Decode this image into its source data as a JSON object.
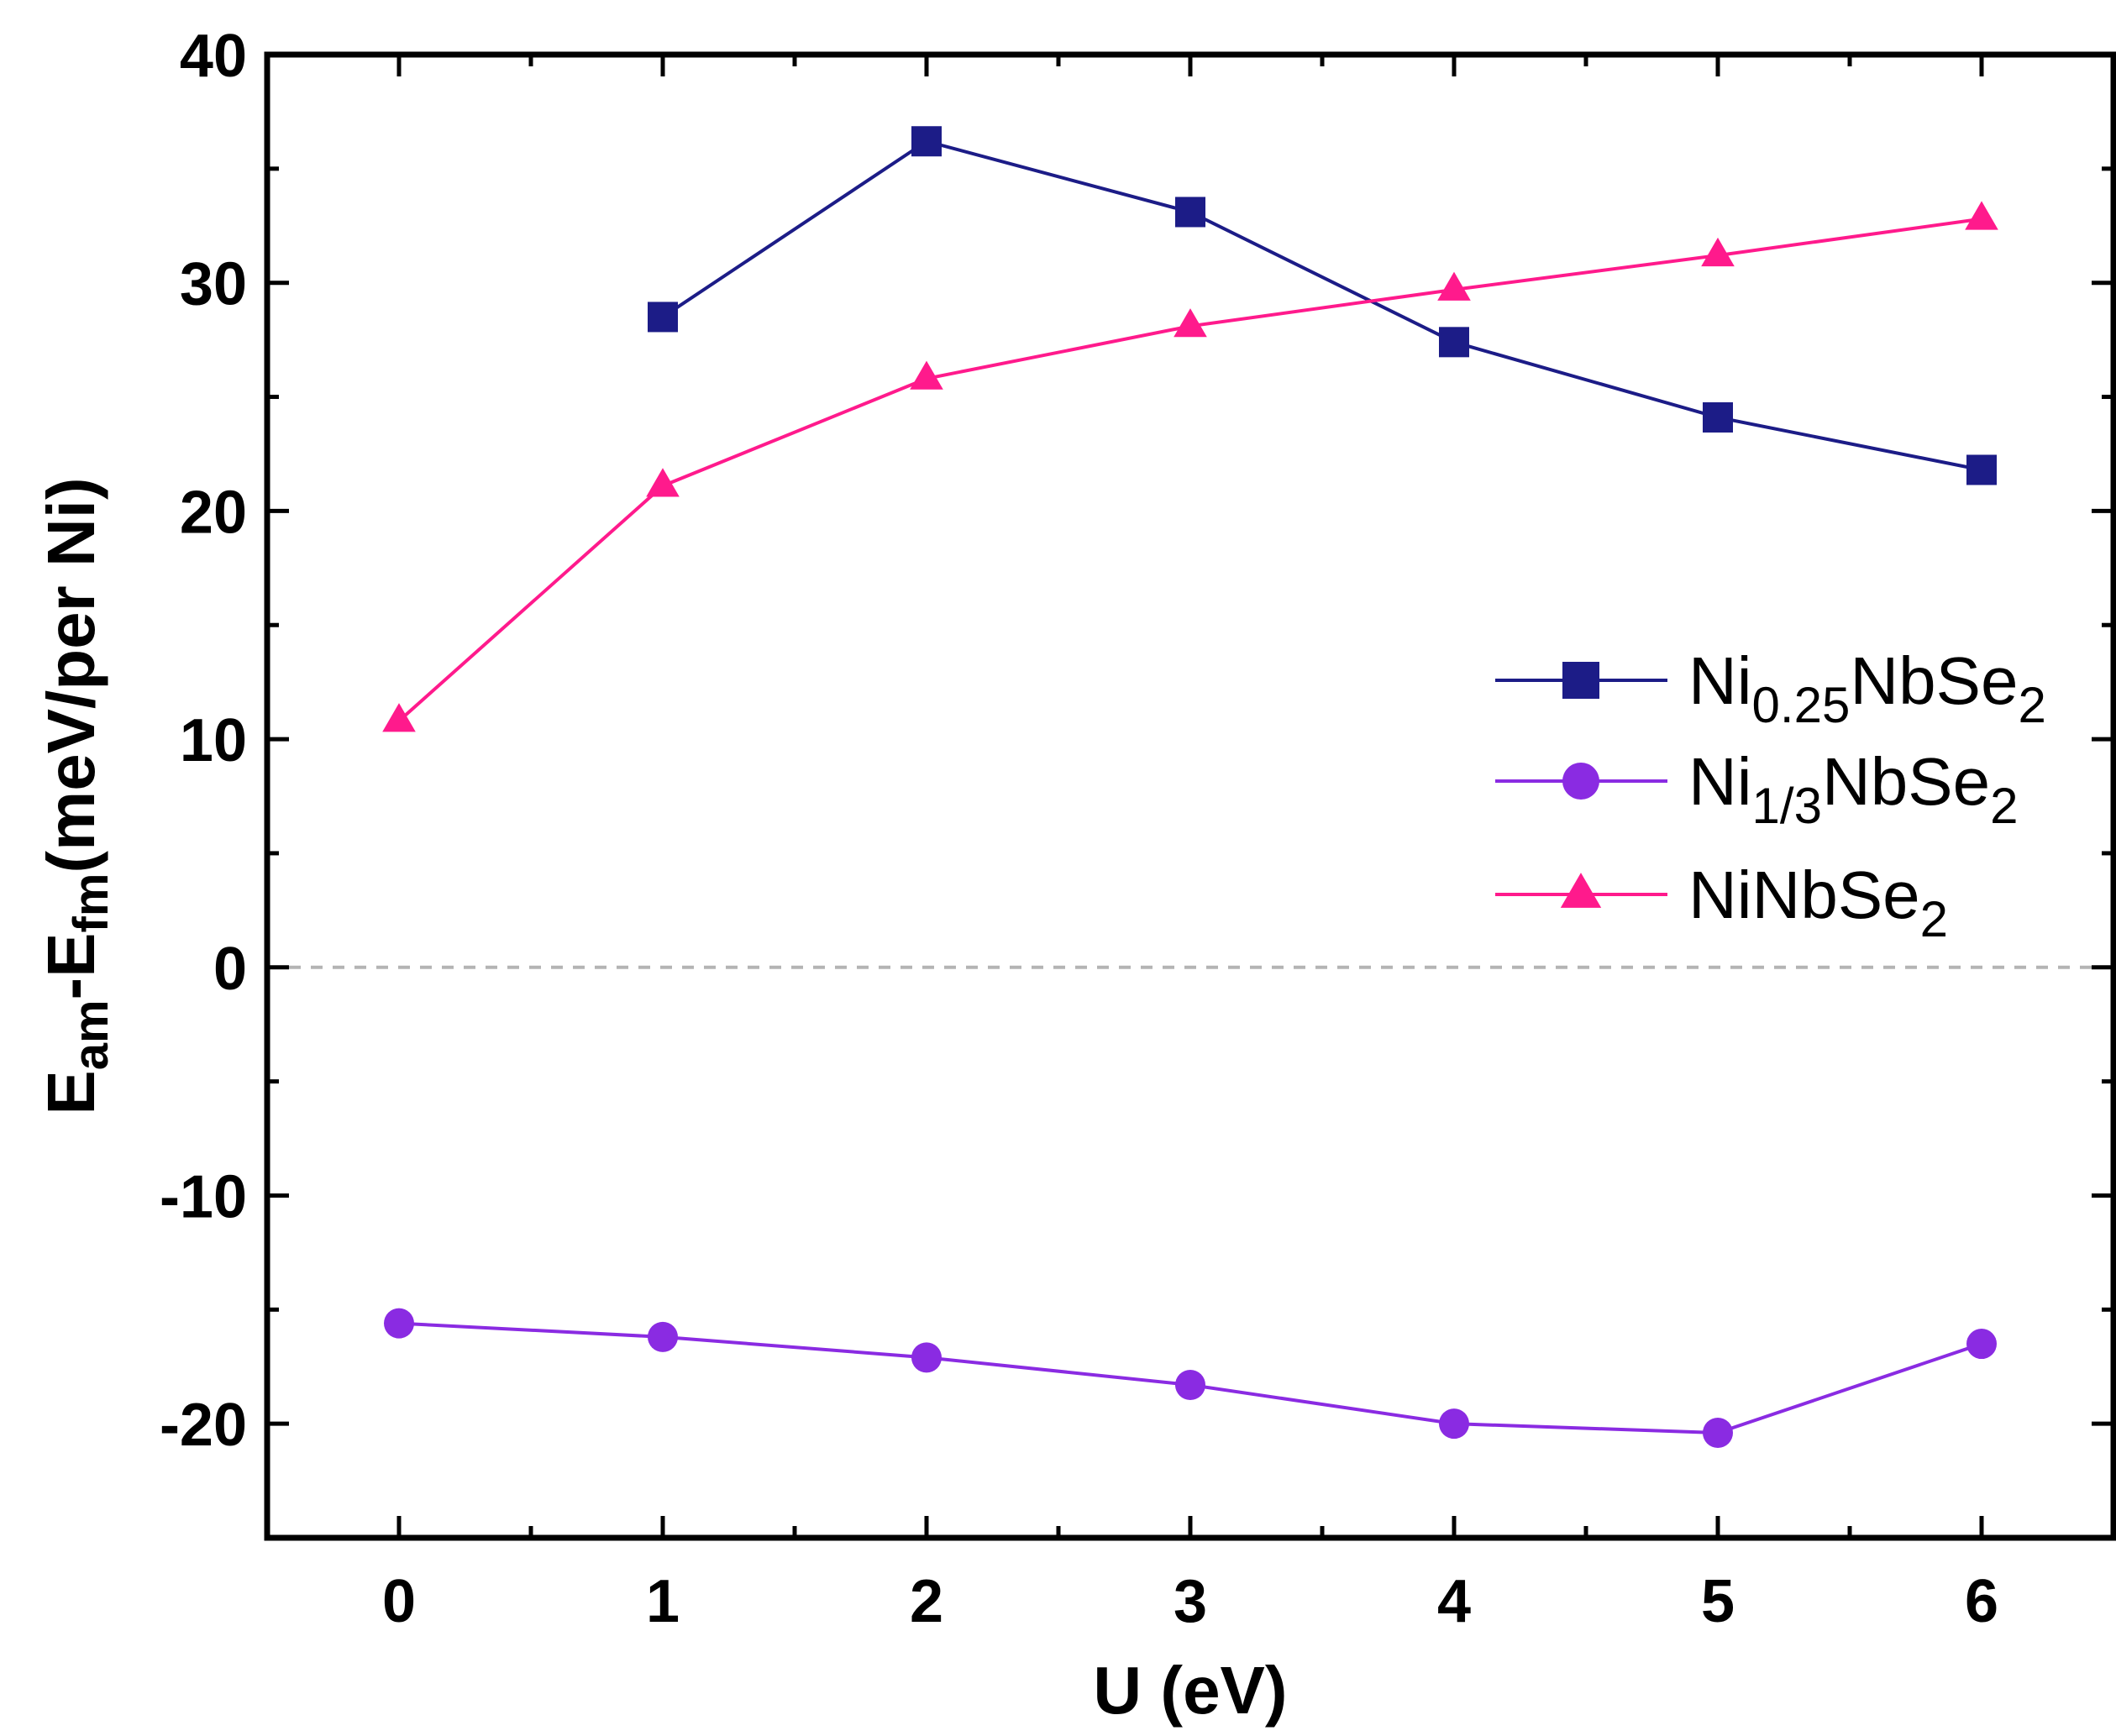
{
  "chart_data": {
    "type": "line",
    "title": "",
    "xlabel": "U (eV)",
    "ylabel": {
      "main": "E",
      "sub1": "am",
      "mid": "-E",
      "sub2": "fm",
      "tail": "(meV/per Ni)"
    },
    "xlim": [
      -0.5,
      6.5
    ],
    "ylim": [
      -25,
      40
    ],
    "x_ticks": [
      0,
      1,
      2,
      3,
      4,
      5,
      6
    ],
    "y_ticks": [
      -20,
      -10,
      0,
      10,
      20,
      30,
      40
    ],
    "y_tick_labels": [
      "-20",
      "-10",
      "0",
      "10",
      "20",
      "30",
      "40"
    ],
    "reference_line_y": 0,
    "legend_position": "center-right",
    "series": [
      {
        "name": "Ni0.25NbSe2",
        "label": {
          "base": "Ni",
          "sub": "0.25",
          "mid": "NbSe",
          "sub2": "2"
        },
        "marker": "square",
        "color": "#1c1c87",
        "x": [
          1,
          2,
          3,
          4,
          5,
          6
        ],
        "values": [
          28.5,
          36.2,
          33.1,
          27.4,
          24.1,
          21.8
        ]
      },
      {
        "name": "Ni1/3NbSe2",
        "label": {
          "base": "Ni",
          "sub": "1/3",
          "mid": "NbSe",
          "sub2": "2"
        },
        "marker": "circle",
        "color": "#8a2be2",
        "x": [
          0,
          1,
          2,
          3,
          4,
          5,
          6
        ],
        "values": [
          -15.6,
          -16.2,
          -17.1,
          -18.3,
          -20.0,
          -20.4,
          -16.5
        ]
      },
      {
        "name": "NiNbSe2",
        "label": {
          "base": "NiNbSe",
          "sub": "",
          "mid": "",
          "sub2": "2"
        },
        "marker": "triangle",
        "color": "#ff1a8c",
        "x": [
          0,
          1,
          2,
          3,
          4,
          5,
          6
        ],
        "values": [
          10.8,
          21.1,
          25.8,
          28.1,
          29.7,
          31.2,
          32.8
        ]
      }
    ]
  }
}
